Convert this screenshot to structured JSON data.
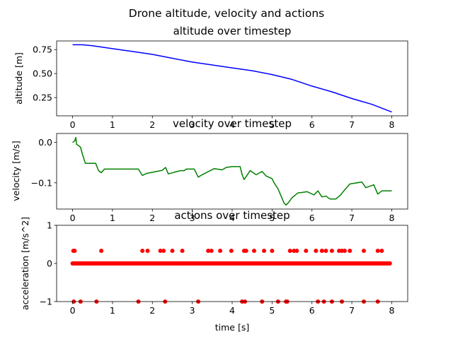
{
  "figure": {
    "suptitle": "Drone altitude, velocity and actions"
  },
  "chart_data": [
    {
      "type": "line",
      "title": "altitude over timestep",
      "xlabel": "",
      "ylabel": "altitude [m]",
      "xlim": [
        -0.4,
        8.4
      ],
      "ylim": [
        0.06,
        0.84
      ],
      "xticks": [
        0,
        1,
        2,
        3,
        4,
        5,
        6,
        7,
        8
      ],
      "yticks": [
        0.25,
        0.5,
        0.75
      ],
      "ytick_labels": [
        "0.25",
        "0.50",
        "0.75"
      ],
      "color": "#0000ff",
      "series": [
        {
          "x": [
            0.0,
            0.25,
            0.5,
            1.0,
            1.5,
            2.0,
            2.5,
            3.0,
            3.5,
            4.0,
            4.5,
            5.0,
            5.5,
            6.0,
            6.5,
            7.0,
            7.5,
            8.0
          ],
          "y": [
            0.8,
            0.8,
            0.79,
            0.76,
            0.73,
            0.7,
            0.66,
            0.62,
            0.59,
            0.56,
            0.53,
            0.49,
            0.44,
            0.37,
            0.31,
            0.24,
            0.18,
            0.1
          ]
        }
      ]
    },
    {
      "type": "line",
      "title": "velocity over timestep",
      "xlabel": "",
      "ylabel": "velocity [m/s]",
      "xlim": [
        -0.4,
        8.4
      ],
      "ylim": [
        -0.165,
        0.022
      ],
      "xticks": [
        0,
        1,
        2,
        3,
        4,
        5,
        6,
        7,
        8
      ],
      "yticks": [
        0.0,
        -0.1
      ],
      "ytick_labels": [
        "0.0",
        "−0.1"
      ],
      "color": "#008000",
      "series": [
        {
          "x": [
            0.0,
            0.05,
            0.08,
            0.1,
            0.15,
            0.2,
            0.25,
            0.32,
            0.58,
            0.65,
            0.72,
            0.8,
            1.65,
            1.75,
            1.85,
            2.25,
            2.33,
            2.4,
            2.7,
            2.8,
            2.85,
            3.05,
            3.15,
            3.25,
            3.45,
            3.55,
            3.75,
            3.85,
            4.0,
            4.2,
            4.25,
            4.3,
            4.35,
            4.45,
            4.6,
            4.75,
            4.85,
            5.0,
            5.05,
            5.15,
            5.3,
            5.35,
            5.42,
            5.5,
            5.65,
            5.75,
            5.88,
            6.05,
            6.15,
            6.25,
            6.35,
            6.45,
            6.6,
            6.7,
            6.8,
            6.95,
            7.25,
            7.35,
            7.55,
            7.65,
            7.75,
            7.82,
            8.0
          ],
          "y": [
            0.0,
            0.003,
            0.012,
            -0.005,
            -0.008,
            -0.012,
            -0.03,
            -0.052,
            -0.052,
            -0.07,
            -0.075,
            -0.066,
            -0.066,
            -0.082,
            -0.077,
            -0.069,
            -0.062,
            -0.078,
            -0.07,
            -0.07,
            -0.066,
            -0.066,
            -0.086,
            -0.08,
            -0.07,
            -0.065,
            -0.068,
            -0.062,
            -0.06,
            -0.06,
            -0.08,
            -0.092,
            -0.085,
            -0.07,
            -0.08,
            -0.072,
            -0.083,
            -0.09,
            -0.1,
            -0.115,
            -0.15,
            -0.155,
            -0.148,
            -0.137,
            -0.125,
            -0.124,
            -0.122,
            -0.13,
            -0.12,
            -0.135,
            -0.133,
            -0.14,
            -0.14,
            -0.132,
            -0.12,
            -0.103,
            -0.098,
            -0.112,
            -0.105,
            -0.128,
            -0.12,
            -0.12,
            -0.12
          ]
        }
      ]
    },
    {
      "type": "scatter",
      "title": "actions over timestep",
      "xlabel": "time [s]",
      "ylabel": "acceleration [m/s^2]",
      "xlim": [
        -0.4,
        8.4
      ],
      "ylim": [
        -1.0,
        1.0
      ],
      "xticks": [
        0,
        1,
        2,
        3,
        4,
        5,
        6,
        7,
        8
      ],
      "yticks": [
        -1,
        0,
        1
      ],
      "ytick_labels": [
        "−1",
        "0",
        "1"
      ],
      "color": "#ff0000",
      "series": [
        {
          "x_positive": [
            0.02,
            0.05,
            0.72,
            1.75,
            1.88,
            2.2,
            2.28,
            2.5,
            2.75,
            3.4,
            3.48,
            3.7,
            3.98,
            4.3,
            4.35,
            4.55,
            4.8,
            5.0,
            5.45,
            5.55,
            5.62,
            5.85,
            6.1,
            6.25,
            6.35,
            6.5,
            6.68,
            6.75,
            6.82,
            6.95,
            7.3,
            7.65,
            7.75
          ],
          "y_positive": 0.33,
          "x_negative": [
            0.03,
            0.2,
            0.6,
            1.65,
            2.32,
            3.15,
            4.25,
            4.32,
            4.75,
            5.15,
            5.35,
            5.38,
            6.15,
            6.3,
            6.5,
            6.75,
            7.3,
            7.65
          ],
          "y_negative": -1.0,
          "zero_start": 0.0,
          "zero_end": 7.98,
          "zero_step": 0.033,
          "y_zero": 0
        }
      ]
    }
  ]
}
